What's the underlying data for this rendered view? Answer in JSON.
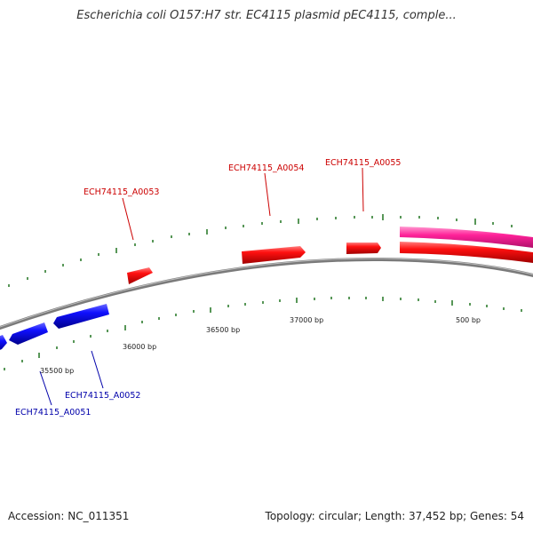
{
  "title": "Escherichia coli O157:H7 str. EC4115 plasmid pEC4115, comple...",
  "footer": {
    "accession": "Accession: NC_011351",
    "topology": "Topology: circular; Length: 37,452 bp; Genes: 54"
  },
  "colors": {
    "forward_gene": "#ff0000",
    "reverse_gene": "#0000ff",
    "pink_track": "#ff2299",
    "backbone": "#7a7a7a",
    "tick": "#2e7d2e",
    "forward_label": "#cc0000",
    "reverse_label": "#0000aa"
  },
  "tick_labels": [
    "35500 bp",
    "36000 bp",
    "36500 bp",
    "37000 bp",
    "500 bp"
  ],
  "genes": [
    {
      "locus": "ECH74115_A0051",
      "strand": "reverse"
    },
    {
      "locus": "ECH74115_A0052",
      "strand": "reverse"
    },
    {
      "locus": "ECH74115_A0053",
      "strand": "forward"
    },
    {
      "locus": "ECH74115_A0054",
      "strand": "forward"
    },
    {
      "locus": "ECH74115_A0055",
      "strand": "forward"
    }
  ]
}
